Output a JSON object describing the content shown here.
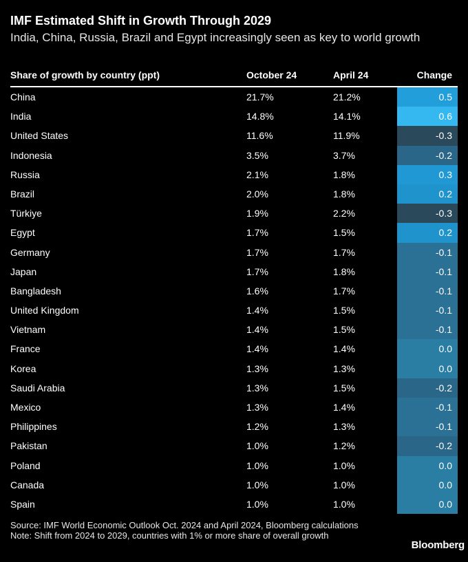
{
  "title": "IMF Estimated Shift in Growth Through 2029",
  "subtitle": "India, China, Russia, Brazil and Egypt increasingly seen as key to world growth",
  "chart_data": {
    "type": "table",
    "columns": [
      "Share of growth by country (ppt)",
      "October 24",
      "April 24",
      "Change"
    ],
    "rows": [
      {
        "country": "China",
        "october_24": "21.7%",
        "april_24": "21.2%",
        "change": "0.5"
      },
      {
        "country": "India",
        "october_24": "14.8%",
        "april_24": "14.1%",
        "change": "0.6"
      },
      {
        "country": "United States",
        "october_24": "11.6%",
        "april_24": "11.9%",
        "change": "-0.3"
      },
      {
        "country": "Indonesia",
        "october_24": "3.5%",
        "april_24": "3.7%",
        "change": "-0.2"
      },
      {
        "country": "Russia",
        "october_24": "2.1%",
        "april_24": "1.8%",
        "change": "0.3"
      },
      {
        "country": "Brazil",
        "october_24": "2.0%",
        "april_24": "1.8%",
        "change": "0.2"
      },
      {
        "country": "Türkiye",
        "october_24": "1.9%",
        "april_24": "2.2%",
        "change": "-0.3"
      },
      {
        "country": "Egypt",
        "october_24": "1.7%",
        "april_24": "1.5%",
        "change": "0.2"
      },
      {
        "country": "Germany",
        "october_24": "1.7%",
        "april_24": "1.7%",
        "change": "-0.1"
      },
      {
        "country": "Japan",
        "october_24": "1.7%",
        "april_24": "1.8%",
        "change": "-0.1"
      },
      {
        "country": "Bangladesh",
        "october_24": "1.6%",
        "april_24": "1.7%",
        "change": "-0.1"
      },
      {
        "country": "United Kingdom",
        "october_24": "1.4%",
        "april_24": "1.5%",
        "change": "-0.1"
      },
      {
        "country": "Vietnam",
        "october_24": "1.4%",
        "april_24": "1.5%",
        "change": "-0.1"
      },
      {
        "country": "France",
        "october_24": "1.4%",
        "april_24": "1.4%",
        "change": "0.0"
      },
      {
        "country": "Korea",
        "october_24": "1.3%",
        "april_24": "1.3%",
        "change": "0.0"
      },
      {
        "country": "Saudi Arabia",
        "october_24": "1.3%",
        "april_24": "1.5%",
        "change": "-0.2"
      },
      {
        "country": "Mexico",
        "october_24": "1.3%",
        "april_24": "1.4%",
        "change": "-0.1"
      },
      {
        "country": "Philippines",
        "october_24": "1.2%",
        "april_24": "1.3%",
        "change": "-0.1"
      },
      {
        "country": "Pakistan",
        "october_24": "1.0%",
        "april_24": "1.2%",
        "change": "-0.2"
      },
      {
        "country": "Poland",
        "october_24": "1.0%",
        "april_24": "1.0%",
        "change": "0.0"
      },
      {
        "country": "Canada",
        "october_24": "1.0%",
        "april_24": "1.0%",
        "change": "0.0"
      },
      {
        "country": "Spain",
        "october_24": "1.0%",
        "april_24": "1.0%",
        "change": "0.0"
      }
    ],
    "change_colors": {
      "0.6": "#35b8f0",
      "0.5": "#229fdb",
      "0.3": "#1f98d4",
      "0.2": "#1f94cc",
      "0.0": "#2b7ea3",
      "-0.1": "#2a7195",
      "-0.2": "#2a6687",
      "-0.3": "#2a4a5c"
    }
  },
  "footer": {
    "source": "Source: IMF World Economic Outlook Oct. 2024 and April 2024, Bloomberg calculations",
    "note": "Note: Shift from 2024 to 2029, countries with 1% or more share of overall growth"
  },
  "brand": "Bloomberg"
}
